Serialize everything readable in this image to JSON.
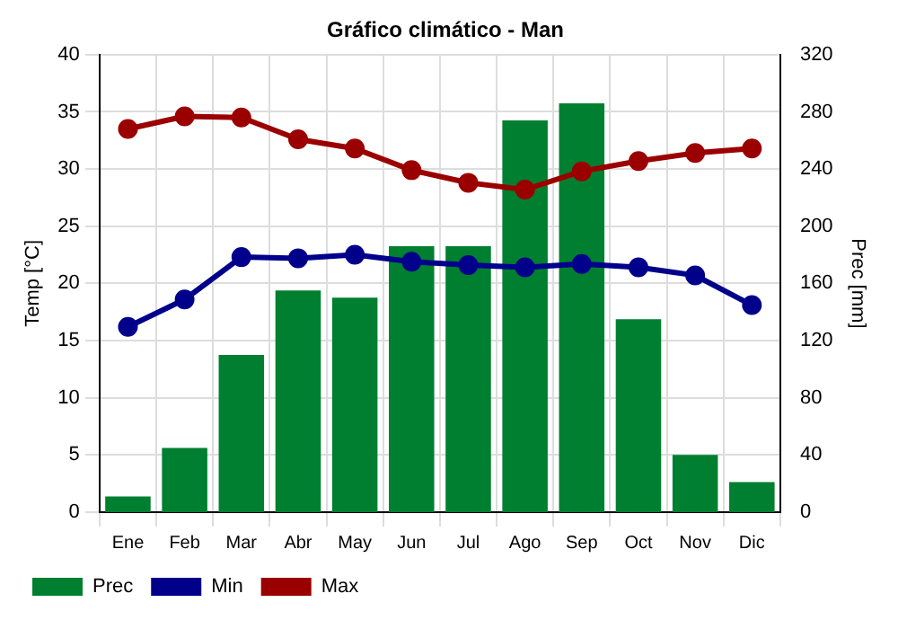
{
  "chart_data": {
    "type": "bar",
    "title": "Gráfico climático - Man",
    "ylabel": "Temp [°C]",
    "y2label": "Prec [mm]",
    "categories": [
      "Ene",
      "Feb",
      "Mar",
      "Abr",
      "May",
      "Jun",
      "Jul",
      "Ago",
      "Sep",
      "Oct",
      "Nov",
      "Dic"
    ],
    "series": [
      {
        "name": "Prec",
        "axis": "y2",
        "color": "#007f30",
        "values": [
          11,
          45,
          110,
          155,
          150,
          186,
          186,
          274,
          286,
          135,
          40,
          21
        ]
      },
      {
        "name": "Min",
        "type": "line",
        "color": "#00008b",
        "values": [
          16.2,
          18.6,
          22.3,
          22.2,
          22.5,
          21.9,
          21.6,
          21.4,
          21.7,
          21.4,
          20.7,
          18.1
        ]
      },
      {
        "name": "Max",
        "type": "line",
        "color": "#9b0000",
        "values": [
          33.5,
          34.6,
          34.5,
          32.6,
          31.8,
          29.9,
          28.8,
          28.2,
          29.8,
          30.7,
          31.4,
          31.8
        ]
      }
    ],
    "ylim": [
      0,
      40
    ],
    "yticks": [
      0,
      5,
      10,
      15,
      20,
      25,
      30,
      35,
      40
    ],
    "y2lim": [
      0,
      320
    ],
    "y2ticks": [
      0,
      40,
      80,
      120,
      160,
      200,
      240,
      280,
      320
    ],
    "grid": true,
    "legend": "bottom left",
    "marker": "circle"
  }
}
